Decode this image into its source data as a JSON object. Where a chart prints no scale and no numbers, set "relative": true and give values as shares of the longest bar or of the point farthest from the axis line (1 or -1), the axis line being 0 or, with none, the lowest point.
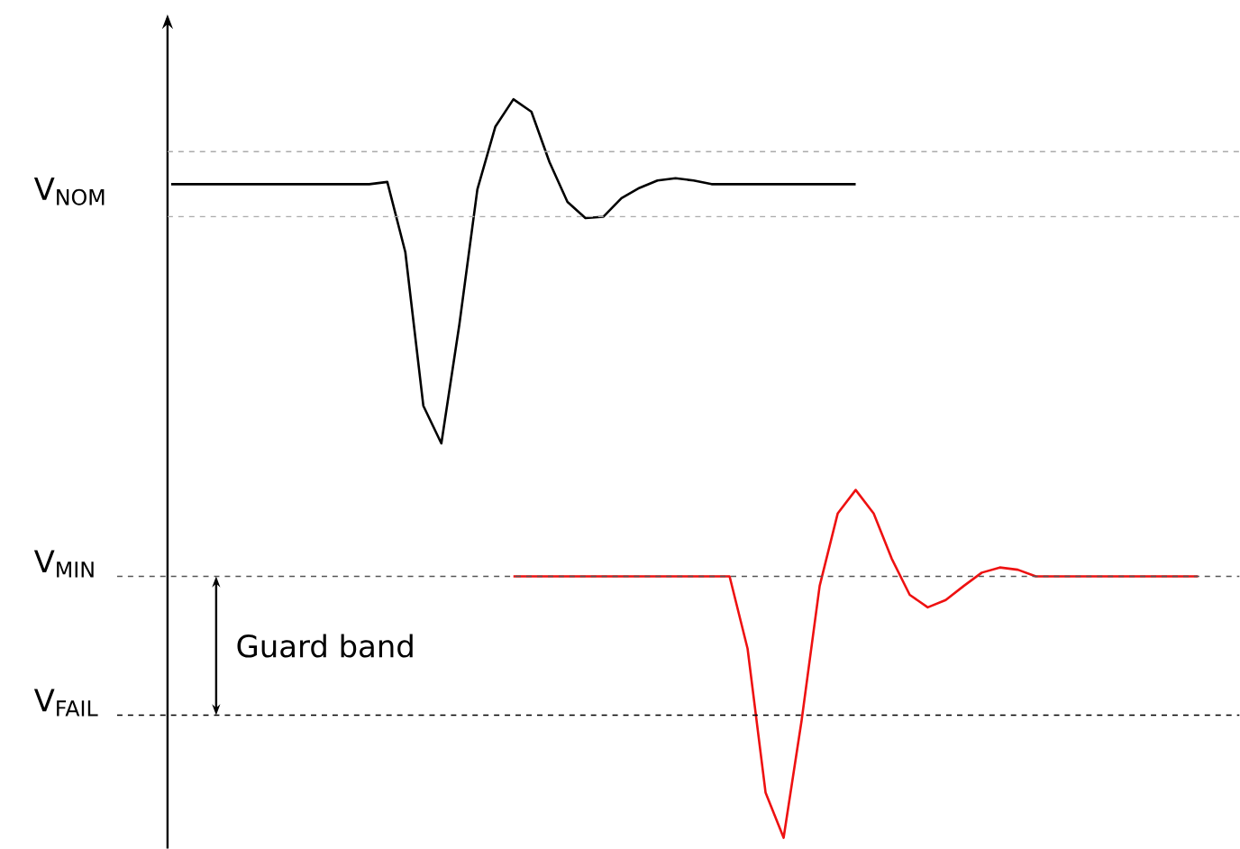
{
  "chart_data": {
    "type": "line",
    "relative": true,
    "categories": [
      null,
      null,
      null,
      null,
      null,
      null,
      null,
      null,
      null,
      null,
      null,
      null,
      null,
      null,
      null,
      null,
      null,
      null,
      null,
      null,
      null,
      null,
      null,
      null,
      null,
      null,
      null,
      null,
      null,
      null,
      null,
      null,
      null,
      null,
      null,
      null,
      null,
      null,
      null,
      null,
      null,
      null,
      null,
      null,
      null,
      null,
      null,
      null,
      null,
      null,
      null,
      null,
      null,
      null,
      null,
      null,
      null,
      null
    ],
    "series": [
      {
        "color": "#000000",
        "values": [
          0.885,
          0.885,
          0.885,
          0.885,
          0.885,
          0.885,
          0.885,
          0.885,
          0.885,
          0.885,
          0.885,
          0.885,
          0.888,
          0.793,
          0.585,
          0.534,
          0.695,
          0.878,
          0.963,
          1.0,
          0.983,
          0.915,
          0.861,
          0.839,
          0.841,
          0.866,
          0.88,
          0.89,
          0.893,
          0.89,
          0.885,
          0.885,
          0.885,
          0.885,
          0.885,
          0.885,
          0.885,
          0.885,
          0.885,
          null,
          null,
          null,
          null,
          null,
          null,
          null,
          null,
          null,
          null,
          null,
          null,
          null,
          null,
          null,
          null,
          null,
          null,
          null
        ]
      },
      {
        "color": "#ee1111",
        "values": [
          null,
          null,
          null,
          null,
          null,
          null,
          null,
          null,
          null,
          null,
          null,
          null,
          null,
          null,
          null,
          null,
          null,
          null,
          null,
          0.354,
          0.354,
          0.354,
          0.354,
          0.354,
          0.354,
          0.354,
          0.354,
          0.354,
          0.354,
          0.354,
          0.354,
          0.354,
          0.256,
          0.061,
          0,
          0.159,
          0.341,
          0.439,
          0.471,
          0.439,
          0.378,
          0.329,
          0.312,
          0.322,
          0.341,
          0.359,
          0.366,
          0.363,
          0.354,
          0.354,
          0.354,
          0.354,
          0.354,
          0.354,
          0.354,
          0.354,
          0.354,
          0.354
        ]
      }
    ],
    "ref_lines": [
      {
        "axis": "y",
        "value": 0.929,
        "color": "#aaaaaa",
        "line_style": "dashed"
      },
      {
        "axis": "y",
        "value": 0.841,
        "color": "#aaaaaa",
        "line_style": "dashed"
      },
      {
        "axis": "y",
        "value": 0.354,
        "label": "V$_{MIN}$",
        "color": "#555555",
        "line_style": "dashed"
      },
      {
        "axis": "y",
        "value": 0.166,
        "label": "V$_{FAIL}$",
        "color": "#000000",
        "line_style": "dashed"
      }
    ],
    "annotations": [
      "V$_{NOM}$",
      "Guard band"
    ]
  }
}
